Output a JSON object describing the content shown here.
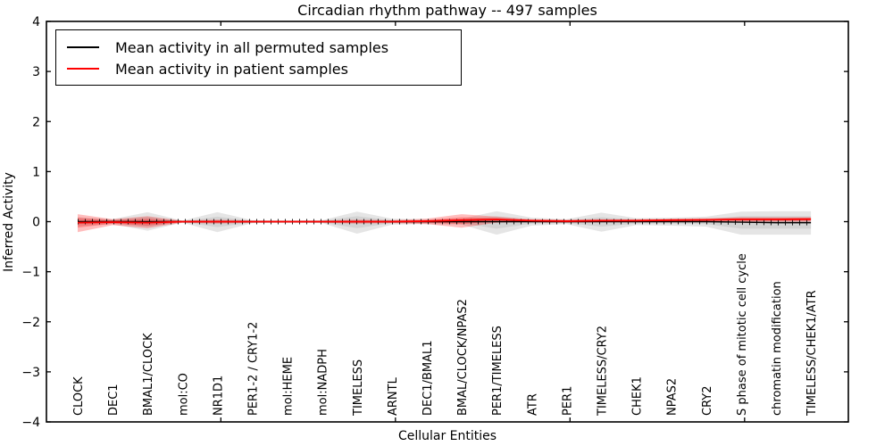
{
  "title": "Circadian rhythm pathway -- 497 samples",
  "xlabel": "Cellular Entities",
  "ylabel": "Inferred Activity",
  "legend": [
    {
      "label": "Mean activity in all permuted samples",
      "color": "#000000"
    },
    {
      "label": "Mean activity in patient samples",
      "color": "#ff0000"
    }
  ],
  "colors": {
    "permuted_line": "#000000",
    "patient_line": "#ff0000",
    "permuted_band": "rgba(0,0,0,0.10)",
    "patient_band": "rgba(255,0,0,0.26)",
    "axis": "#000000"
  },
  "chart_data": {
    "type": "line",
    "title": "Circadian rhythm pathway -- 497 samples",
    "xlabel": "Cellular Entities",
    "ylabel": "Inferred Activity",
    "ylim": [
      -4,
      4
    ],
    "yticks": [
      4,
      3,
      2,
      1,
      0,
      -1,
      -2,
      -3,
      -4
    ],
    "grid": false,
    "legend_position": "upper left",
    "categories": [
      "CLOCK",
      "DEC1",
      "BMAL1/CLOCK",
      "mol:CO",
      "NR1D1",
      "PER1-2 / CRY1-2",
      "mol:HEME",
      "mol:NADPH",
      "TIMELESS",
      "ARNTL",
      "DEC1/BMAL1",
      "BMAL/CLOCK/NPAS2",
      "PER1/TIMELESS",
      "ATR",
      "PER1",
      "TIMELESS/CRY2",
      "CHEK1",
      "NPAS2",
      "CRY2",
      "S phase of mitotic cell cycle",
      "chromatin modification",
      "TIMELESS/CHEK1/ATR"
    ],
    "series": [
      {
        "name": "Mean activity in all permuted samples",
        "color": "#000000",
        "values": [
          0,
          0,
          0,
          0,
          0,
          0,
          0,
          0,
          0,
          0,
          0,
          0,
          0,
          0,
          0,
          0,
          0,
          0,
          0,
          -0.01,
          -0.02,
          -0.02
        ]
      },
      {
        "name": "Mean activity in patient samples",
        "color": "#ff0000",
        "values": [
          -0.02,
          -0.01,
          -0.02,
          0,
          0,
          0,
          0,
          0,
          0,
          0,
          0.01,
          0.03,
          0.045,
          0.02,
          0.01,
          0.02,
          0.02,
          0.03,
          0.035,
          0.045,
          0.045,
          0.05
        ]
      }
    ],
    "bands": [
      {
        "name": "permuted-spread-outer",
        "color": "rgba(0,0,0,0.10)",
        "upper": [
          0.09,
          0.05,
          0.19,
          0.02,
          0.19,
          0.03,
          0.02,
          0.03,
          0.2,
          0.06,
          0.05,
          0.06,
          0.21,
          0.08,
          0.05,
          0.18,
          0.07,
          0.08,
          0.1,
          0.2,
          0.21,
          0.21
        ],
        "lower": [
          -0.09,
          -0.05,
          -0.18,
          -0.02,
          -0.21,
          -0.03,
          -0.02,
          -0.03,
          -0.24,
          -0.06,
          -0.05,
          -0.06,
          -0.26,
          -0.08,
          -0.05,
          -0.2,
          -0.07,
          -0.08,
          -0.1,
          -0.26,
          -0.26,
          -0.26
        ]
      },
      {
        "name": "permuted-spread-inner",
        "color": "rgba(0,0,0,0.08)",
        "upper": [
          0.05,
          0.03,
          0.1,
          0.01,
          0.1,
          0.02,
          0.01,
          0.02,
          0.11,
          0.03,
          0.03,
          0.03,
          0.11,
          0.04,
          0.03,
          0.09,
          0.04,
          0.04,
          0.05,
          0.11,
          0.11,
          0.11
        ],
        "lower": [
          -0.05,
          -0.03,
          -0.1,
          -0.01,
          -0.11,
          -0.02,
          -0.01,
          -0.02,
          -0.13,
          -0.03,
          -0.03,
          -0.03,
          -0.14,
          -0.04,
          -0.03,
          -0.1,
          -0.04,
          -0.04,
          -0.05,
          -0.14,
          -0.14,
          -0.14
        ]
      },
      {
        "name": "patient-spread-outer",
        "color": "rgba(255,0,0,0.26)",
        "upper": [
          0.15,
          0.05,
          0.11,
          0.02,
          0.04,
          0.02,
          0.02,
          0.02,
          0.04,
          0.03,
          0.06,
          0.15,
          0.1,
          0.05,
          0.04,
          0.05,
          0.05,
          0.06,
          0.07,
          0.09,
          0.09,
          0.09
        ],
        "lower": [
          -0.21,
          -0.07,
          -0.13,
          -0.02,
          -0.04,
          -0.02,
          -0.02,
          -0.02,
          -0.04,
          -0.03,
          -0.05,
          -0.12,
          -0.02,
          -0.01,
          -0.02,
          -0.01,
          -0.01,
          0,
          0,
          0,
          0,
          0
        ]
      },
      {
        "name": "patient-spread-inner",
        "color": "rgba(255,0,0,0.26)",
        "upper": [
          0.08,
          0.03,
          0.06,
          0.01,
          0.02,
          0.01,
          0.01,
          0.01,
          0.02,
          0.015,
          0.03,
          0.09,
          0.07,
          0.03,
          0.025,
          0.035,
          0.035,
          0.045,
          0.05,
          0.07,
          0.07,
          0.07
        ],
        "lower": [
          -0.12,
          -0.04,
          -0.08,
          -0.01,
          -0.02,
          -0.01,
          -0.01,
          -0.01,
          -0.02,
          -0.015,
          -0.02,
          -0.05,
          0.01,
          0,
          -0.005,
          0.005,
          0.005,
          0.015,
          0.02,
          0.02,
          0.02,
          0.025
        ]
      }
    ]
  }
}
